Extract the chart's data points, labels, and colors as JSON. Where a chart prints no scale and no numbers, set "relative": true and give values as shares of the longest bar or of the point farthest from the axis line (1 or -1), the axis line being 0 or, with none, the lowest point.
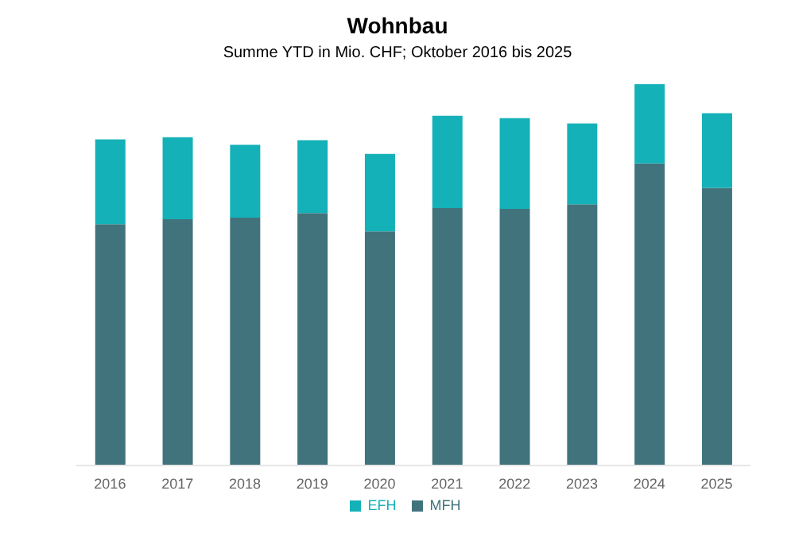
{
  "chart_data": {
    "type": "bar",
    "title": "Wohnbau",
    "subtitle": "Summe YTD in Mio. CHF; Oktober 2016 bis 2025",
    "relative": true,
    "stacked": true,
    "legend": "bottom",
    "categories": [
      "2016",
      "2017",
      "2018",
      "2019",
      "2020",
      "2021",
      "2022",
      "2023",
      "2024",
      "2025"
    ],
    "series": [
      {
        "name": "MFH",
        "color": "#41737c",
        "values": [
          0.633,
          0.646,
          0.65,
          0.662,
          0.614,
          0.675,
          0.673,
          0.685,
          0.792,
          0.728
        ]
      },
      {
        "name": "EFH",
        "color": "#14b1b8",
        "values": [
          0.222,
          0.215,
          0.191,
          0.191,
          0.203,
          0.242,
          0.238,
          0.212,
          0.208,
          0.196
        ]
      }
    ]
  }
}
